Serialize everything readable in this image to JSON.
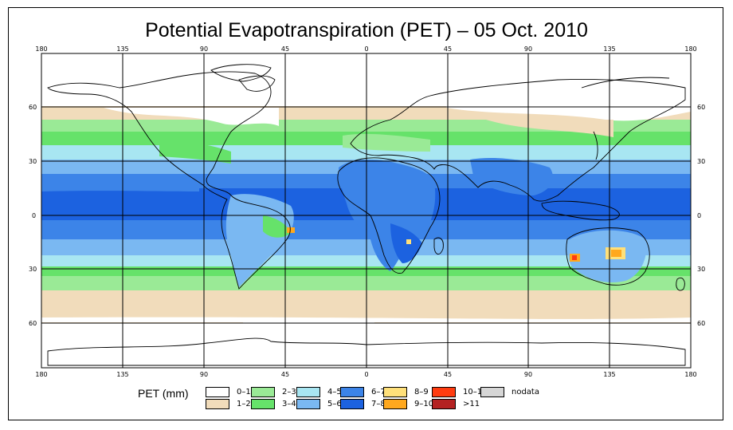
{
  "title": "Potential Evapotranspiration (PET) – 05 Oct. 2010",
  "top_ticks": [
    "180",
    "135",
    "90",
    "45",
    "0",
    "45",
    "90",
    "135",
    "180"
  ],
  "bottom_ticks": [
    "180",
    "135",
    "90",
    "45",
    "0",
    "45",
    "90",
    "135",
    "180"
  ],
  "left_ticks": [
    "60",
    "30",
    "0",
    "30",
    "60"
  ],
  "right_ticks": [
    "60",
    "30",
    "0",
    "30",
    "60"
  ],
  "legend": {
    "title": "PET (mm)",
    "items": [
      {
        "label": "0–1",
        "color": "#ffffff"
      },
      {
        "label": "1–2",
        "color": "#f1dcbb"
      },
      {
        "label": "2–3",
        "color": "#9aea96"
      },
      {
        "label": "3–4",
        "color": "#66e26a"
      },
      {
        "label": "4–5",
        "color": "#a8e6f2"
      },
      {
        "label": "5–6",
        "color": "#7ab8f2"
      },
      {
        "label": "6–7",
        "color": "#3c84e8"
      },
      {
        "label": "7–8",
        "color": "#1c62e0"
      },
      {
        "label": "8–9",
        "color": "#ffe07a"
      },
      {
        "label": "9–10",
        "color": "#ffa81e"
      },
      {
        "label": "10–11",
        "color": "#ff3c10"
      },
      {
        "label": ">11",
        "color": "#b42222"
      },
      {
        "label": "nodata",
        "color": "#d6d6d6"
      }
    ]
  }
}
